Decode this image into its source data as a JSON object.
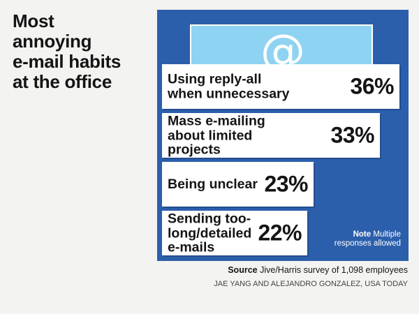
{
  "title_lines": [
    "Most",
    "annoying",
    "e-mail habits",
    "at the office"
  ],
  "colors": {
    "panel": "#2b5fac",
    "envelope": "#8fd3f2",
    "bar": "#ffffff",
    "text": "#141414"
  },
  "icon": "at-sign-icon",
  "chart_data": {
    "type": "bar",
    "orientation": "horizontal",
    "title": "Most annoying e-mail habits at the office",
    "categories": [
      "Using reply-all when unnecessary",
      "Mass e-mailing about limited projects",
      "Being unclear",
      "Sending too-long/detailed e-mails"
    ],
    "display_labels": [
      "Using reply-all\nwhen unnecessary",
      "Mass e-mailing\nabout limited\nprojects",
      "Being unclear",
      "Sending too-\nlong/detailed\ne-mails"
    ],
    "values": [
      36,
      33,
      23,
      22
    ],
    "value_labels": [
      "36%",
      "33%",
      "23%",
      "22%"
    ],
    "unit": "%"
  },
  "note": {
    "label": "Note",
    "text": "Multiple responses allowed"
  },
  "source": {
    "label": "Source",
    "text": "Jive/Harris survey of 1,098 employees"
  },
  "credit": "JAE YANG AND ALEJANDRO GONZALEZ, USA TODAY"
}
